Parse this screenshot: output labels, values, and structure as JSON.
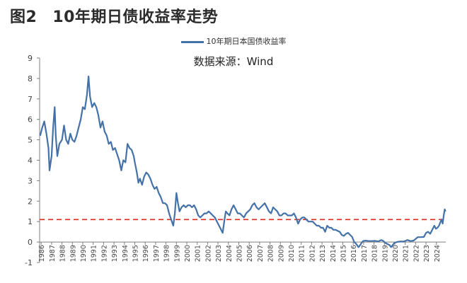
{
  "figure": {
    "label": "图2",
    "title": "10年期日债收益率走势"
  },
  "source": "数据来源：Wind",
  "colors": {
    "series": "#4472a8",
    "reference": "#e0281e",
    "axis": "#7f7f7f"
  },
  "chart_data": {
    "type": "line",
    "ylim": [
      -1,
      9
    ],
    "y_ticks": [
      "9",
      "8",
      "7",
      "6",
      "5",
      "4",
      "3",
      "2",
      "1",
      "0",
      "-1"
    ],
    "x_ticks": [
      "1986",
      "1987",
      "1988",
      "1989",
      "1990",
      "1991",
      "1992",
      "1993",
      "1994",
      "1995",
      "1996",
      "1997",
      "1998",
      "1999",
      "2000",
      "2001",
      "2002",
      "2003",
      "2004",
      "2005",
      "2006",
      "2007",
      "2008",
      "2009",
      "2010",
      "2011",
      "2012",
      "2013",
      "2014",
      "2015",
      "2016",
      "2017",
      "2018",
      "2019",
      "2020",
      "2021",
      "2022",
      "2023",
      "2024"
    ],
    "reference_line": {
      "y": 1.1,
      "style": "dashed"
    },
    "series": [
      {
        "name": "10年期日本国债收益率",
        "points": [
          [
            1985.9,
            5.2
          ],
          [
            1986.1,
            5.6
          ],
          [
            1986.3,
            5.9
          ],
          [
            1986.5,
            5.3
          ],
          [
            1986.7,
            4.6
          ],
          [
            1986.8,
            3.5
          ],
          [
            1987.0,
            4.2
          ],
          [
            1987.15,
            5.6
          ],
          [
            1987.3,
            6.6
          ],
          [
            1987.4,
            5.2
          ],
          [
            1987.55,
            4.2
          ],
          [
            1987.75,
            4.8
          ],
          [
            1988.0,
            5.0
          ],
          [
            1988.2,
            5.7
          ],
          [
            1988.4,
            5.0
          ],
          [
            1988.6,
            4.8
          ],
          [
            1988.8,
            5.3
          ],
          [
            1989.0,
            5.0
          ],
          [
            1989.2,
            4.9
          ],
          [
            1989.4,
            5.2
          ],
          [
            1989.6,
            5.6
          ],
          [
            1989.8,
            6.0
          ],
          [
            1990.0,
            6.6
          ],
          [
            1990.2,
            6.5
          ],
          [
            1990.4,
            7.2
          ],
          [
            1990.55,
            8.1
          ],
          [
            1990.7,
            7.1
          ],
          [
            1990.9,
            6.6
          ],
          [
            1991.1,
            6.8
          ],
          [
            1991.3,
            6.6
          ],
          [
            1991.5,
            6.2
          ],
          [
            1991.7,
            5.6
          ],
          [
            1991.9,
            5.9
          ],
          [
            1992.1,
            5.4
          ],
          [
            1992.3,
            5.2
          ],
          [
            1992.5,
            4.8
          ],
          [
            1992.7,
            4.9
          ],
          [
            1992.9,
            4.5
          ],
          [
            1993.1,
            4.6
          ],
          [
            1993.3,
            4.3
          ],
          [
            1993.5,
            4.0
          ],
          [
            1993.7,
            3.5
          ],
          [
            1993.9,
            4.0
          ],
          [
            1994.1,
            3.9
          ],
          [
            1994.3,
            4.8
          ],
          [
            1994.5,
            4.6
          ],
          [
            1994.7,
            4.5
          ],
          [
            1994.9,
            4.2
          ],
          [
            1995.0,
            3.9
          ],
          [
            1995.2,
            3.4
          ],
          [
            1995.35,
            2.9
          ],
          [
            1995.5,
            3.1
          ],
          [
            1995.7,
            2.8
          ],
          [
            1995.9,
            3.2
          ],
          [
            1996.1,
            3.4
          ],
          [
            1996.3,
            3.3
          ],
          [
            1996.5,
            3.1
          ],
          [
            1996.7,
            2.8
          ],
          [
            1996.9,
            2.6
          ],
          [
            1997.1,
            2.7
          ],
          [
            1997.3,
            2.4
          ],
          [
            1997.5,
            2.2
          ],
          [
            1997.7,
            1.9
          ],
          [
            1997.9,
            1.9
          ],
          [
            1998.1,
            1.8
          ],
          [
            1998.3,
            1.4
          ],
          [
            1998.5,
            1.1
          ],
          [
            1998.7,
            0.8
          ],
          [
            1998.85,
            1.4
          ],
          [
            1999.0,
            2.4
          ],
          [
            1999.15,
            1.9
          ],
          [
            1999.3,
            1.5
          ],
          [
            1999.5,
            1.7
          ],
          [
            1999.7,
            1.8
          ],
          [
            1999.9,
            1.7
          ],
          [
            2000.1,
            1.8
          ],
          [
            2000.3,
            1.8
          ],
          [
            2000.5,
            1.7
          ],
          [
            2000.7,
            1.8
          ],
          [
            2000.9,
            1.6
          ],
          [
            2001.1,
            1.3
          ],
          [
            2001.3,
            1.2
          ],
          [
            2001.5,
            1.3
          ],
          [
            2001.7,
            1.4
          ],
          [
            2001.9,
            1.4
          ],
          [
            2002.1,
            1.5
          ],
          [
            2002.3,
            1.4
          ],
          [
            2002.5,
            1.3
          ],
          [
            2002.7,
            1.2
          ],
          [
            2002.9,
            1.0
          ],
          [
            2003.1,
            0.8
          ],
          [
            2003.3,
            0.6
          ],
          [
            2003.45,
            0.45
          ],
          [
            2003.6,
            1.0
          ],
          [
            2003.75,
            1.5
          ],
          [
            2003.9,
            1.4
          ],
          [
            2004.1,
            1.3
          ],
          [
            2004.3,
            1.6
          ],
          [
            2004.5,
            1.8
          ],
          [
            2004.7,
            1.6
          ],
          [
            2004.9,
            1.4
          ],
          [
            2005.1,
            1.4
          ],
          [
            2005.3,
            1.3
          ],
          [
            2005.5,
            1.2
          ],
          [
            2005.7,
            1.4
          ],
          [
            2005.9,
            1.5
          ],
          [
            2006.1,
            1.6
          ],
          [
            2006.3,
            1.8
          ],
          [
            2006.5,
            1.9
          ],
          [
            2006.7,
            1.7
          ],
          [
            2006.9,
            1.6
          ],
          [
            2007.1,
            1.7
          ],
          [
            2007.3,
            1.8
          ],
          [
            2007.5,
            1.9
          ],
          [
            2007.7,
            1.7
          ],
          [
            2007.9,
            1.5
          ],
          [
            2008.1,
            1.4
          ],
          [
            2008.3,
            1.7
          ],
          [
            2008.5,
            1.6
          ],
          [
            2008.7,
            1.5
          ],
          [
            2008.9,
            1.3
          ],
          [
            2009.1,
            1.3
          ],
          [
            2009.3,
            1.4
          ],
          [
            2009.5,
            1.4
          ],
          [
            2009.7,
            1.3
          ],
          [
            2009.9,
            1.3
          ],
          [
            2010.1,
            1.3
          ],
          [
            2010.3,
            1.4
          ],
          [
            2010.5,
            1.2
          ],
          [
            2010.7,
            0.9
          ],
          [
            2010.9,
            1.1
          ],
          [
            2011.1,
            1.2
          ],
          [
            2011.3,
            1.2
          ],
          [
            2011.5,
            1.1
          ],
          [
            2011.7,
            1.0
          ],
          [
            2011.9,
            1.0
          ],
          [
            2012.1,
            1.0
          ],
          [
            2012.3,
            0.9
          ],
          [
            2012.5,
            0.8
          ],
          [
            2012.7,
            0.8
          ],
          [
            2012.9,
            0.7
          ],
          [
            2013.1,
            0.7
          ],
          [
            2013.3,
            0.5
          ],
          [
            2013.5,
            0.8
          ],
          [
            2013.7,
            0.7
          ],
          [
            2013.9,
            0.7
          ],
          [
            2014.1,
            0.6
          ],
          [
            2014.3,
            0.6
          ],
          [
            2014.5,
            0.55
          ],
          [
            2014.7,
            0.5
          ],
          [
            2014.9,
            0.35
          ],
          [
            2015.1,
            0.3
          ],
          [
            2015.3,
            0.4
          ],
          [
            2015.5,
            0.45
          ],
          [
            2015.7,
            0.35
          ],
          [
            2015.9,
            0.25
          ],
          [
            2016.1,
            0.0
          ],
          [
            2016.3,
            -0.1
          ],
          [
            2016.5,
            -0.25
          ],
          [
            2016.6,
            -0.2
          ],
          [
            2016.8,
            -0.05
          ],
          [
            2016.95,
            0.05
          ],
          [
            2017.2,
            0.07
          ],
          [
            2017.5,
            0.05
          ],
          [
            2017.8,
            0.05
          ],
          [
            2018.1,
            0.06
          ],
          [
            2018.4,
            0.03
          ],
          [
            2018.7,
            0.1
          ],
          [
            2018.9,
            0.05
          ],
          [
            2019.1,
            -0.05
          ],
          [
            2019.3,
            -0.1
          ],
          [
            2019.5,
            -0.15
          ],
          [
            2019.65,
            -0.25
          ],
          [
            2019.8,
            -0.15
          ],
          [
            2019.95,
            -0.05
          ],
          [
            2020.2,
            0.0
          ],
          [
            2020.4,
            0.02
          ],
          [
            2020.6,
            0.03
          ],
          [
            2020.8,
            0.02
          ],
          [
            2021.0,
            0.05
          ],
          [
            2021.2,
            0.1
          ],
          [
            2021.5,
            0.05
          ],
          [
            2021.8,
            0.07
          ],
          [
            2022.0,
            0.15
          ],
          [
            2022.2,
            0.24
          ],
          [
            2022.5,
            0.24
          ],
          [
            2022.8,
            0.25
          ],
          [
            2023.0,
            0.45
          ],
          [
            2023.2,
            0.5
          ],
          [
            2023.4,
            0.4
          ],
          [
            2023.6,
            0.6
          ],
          [
            2023.8,
            0.8
          ],
          [
            2023.95,
            0.65
          ],
          [
            2024.1,
            0.7
          ],
          [
            2024.25,
            0.8
          ],
          [
            2024.4,
            1.0
          ],
          [
            2024.5,
            1.1
          ],
          [
            2024.6,
            0.9
          ],
          [
            2024.7,
            1.3
          ],
          [
            2024.8,
            1.6
          ],
          [
            2024.88,
            1.5
          ]
        ]
      }
    ]
  }
}
